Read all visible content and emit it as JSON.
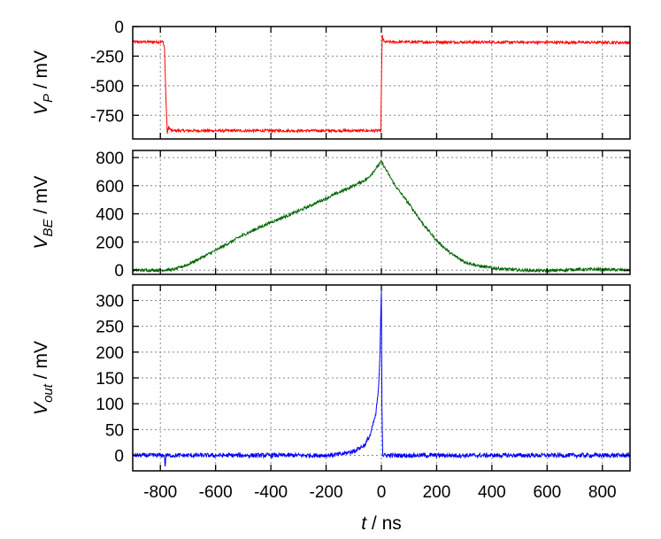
{
  "chart_data": [
    {
      "type": "line",
      "ylabel": {
        "main": "V",
        "sub": "P",
        "unit": " / mV"
      },
      "ylim": [
        -950,
        0
      ],
      "yticks": [
        0,
        -250,
        -500,
        -750
      ],
      "ytick_labels": [
        "0",
        "-250",
        "-500",
        "-750"
      ],
      "xlim": [
        -900,
        900
      ],
      "grid": true,
      "series": [
        {
          "color": "#ff0000",
          "x": [
            -900,
            -790,
            -785,
            -780,
            -775,
            -770,
            -760,
            -5,
            -2,
            0,
            3,
            10,
            900
          ],
          "y": [
            -130,
            -130,
            -180,
            -600,
            -900,
            -850,
            -880,
            -880,
            -880,
            -500,
            -80,
            -130,
            -135
          ]
        }
      ]
    },
    {
      "type": "line",
      "ylabel": {
        "main": "V",
        "sub": "BE",
        "unit": " / mV"
      },
      "ylim": [
        -30,
        850
      ],
      "yticks": [
        0,
        200,
        400,
        600,
        800
      ],
      "ytick_labels": [
        "0",
        "200",
        "400",
        "600",
        "800"
      ],
      "xlim": [
        -900,
        900
      ],
      "grid": true,
      "series": [
        {
          "color": "#006400",
          "x": [
            -900,
            -800,
            -750,
            -700,
            -600,
            -500,
            -400,
            -300,
            -200,
            -100,
            -50,
            0,
            50,
            100,
            150,
            200,
            250,
            300,
            350,
            400,
            500,
            600,
            700,
            800,
            900
          ],
          "y": [
            0,
            0,
            5,
            40,
            140,
            250,
            340,
            420,
            510,
            600,
            650,
            770,
            600,
            470,
            330,
            210,
            120,
            60,
            30,
            15,
            0,
            -5,
            5,
            5,
            0
          ]
        }
      ]
    },
    {
      "type": "line",
      "ylabel": {
        "main": "V",
        "sub": "out",
        "unit": " / mV"
      },
      "xlabel": {
        "main": "t",
        "unit": " / ns"
      },
      "ylim": [
        -30,
        330
      ],
      "yticks": [
        0,
        50,
        100,
        150,
        200,
        250,
        300
      ],
      "ytick_labels": [
        "0",
        "50",
        "100",
        "150",
        "200",
        "250",
        "300"
      ],
      "xlim": [
        -900,
        900
      ],
      "xticks": [
        -800,
        -600,
        -400,
        -200,
        0,
        200,
        400,
        600,
        800
      ],
      "xtick_labels": [
        "-800",
        "-600",
        "-400",
        "-200",
        "0",
        "200",
        "400",
        "600",
        "800"
      ],
      "grid": true,
      "series": [
        {
          "color": "#0000ff",
          "x": [
            -900,
            -785,
            -783,
            -780,
            -200,
            -150,
            -100,
            -60,
            -40,
            -20,
            -10,
            -5,
            -2,
            0,
            2,
            5,
            10,
            900
          ],
          "y": [
            0,
            0,
            -25,
            0,
            0,
            2,
            8,
            20,
            40,
            80,
            130,
            200,
            280,
            320,
            100,
            0,
            0,
            0
          ]
        }
      ]
    }
  ]
}
